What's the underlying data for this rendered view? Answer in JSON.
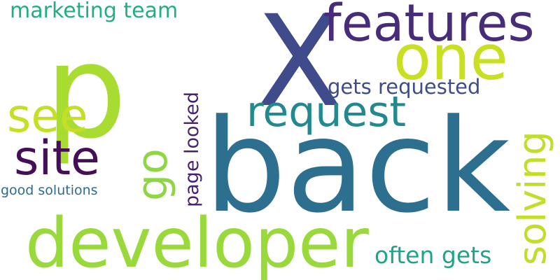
{
  "word_cloud": {
    "words": [
      {
        "text": "back",
        "color": "#2c6f8e"
      },
      {
        "text": "X",
        "color": "#3f4b8a"
      },
      {
        "text": "p",
        "color": "#a9dc31"
      },
      {
        "text": "developer",
        "color": "#9ad93b"
      },
      {
        "text": "one",
        "color": "#c8e021"
      },
      {
        "text": "features",
        "color": "#472c7a"
      },
      {
        "text": "request",
        "color": "#23898e"
      },
      {
        "text": "site",
        "color": "#440f56"
      },
      {
        "text": "see",
        "color": "#c5df26"
      },
      {
        "text": "go",
        "color": "#8fd645"
      },
      {
        "text": "solving",
        "color": "#c0de2a"
      },
      {
        "text": "page looked",
        "color": "#46216e"
      },
      {
        "text": "gets requested",
        "color": "#3e4c8a"
      },
      {
        "text": "often gets",
        "color": "#20a386"
      },
      {
        "text": "marketing team",
        "color": "#25ad82"
      },
      {
        "text": "good solutions",
        "color": "#2e6c8e"
      }
    ]
  }
}
